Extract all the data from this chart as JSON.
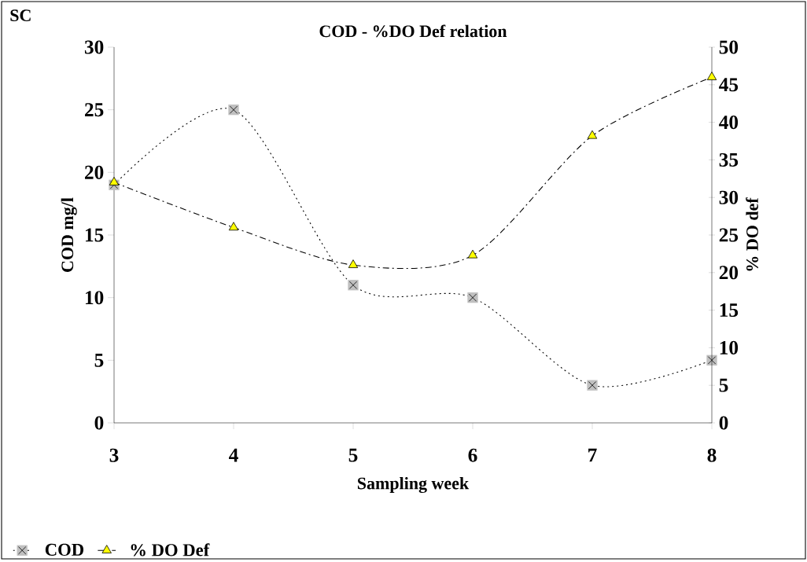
{
  "chart_data": {
    "type": "line",
    "title": "COD - %DO Def relation",
    "xlabel": "Sampling week",
    "ylabel": "COD mg/l",
    "y2label": "% DO def",
    "annotations": [
      "SC"
    ],
    "x": [
      3,
      4,
      5,
      6,
      7,
      8
    ],
    "series": [
      {
        "name": "COD",
        "color": "#c0c0c0",
        "marker": "square",
        "line_style": "dotted",
        "values": [
          19,
          25,
          11,
          10,
          3,
          5
        ]
      },
      {
        "name": "% DO Def",
        "color": "#ffff00",
        "marker": "triangle",
        "line_style": "dashed",
        "axis": "y2",
        "values": [
          32,
          26,
          21,
          22.3,
          38.2,
          46
        ]
      }
    ],
    "xlim": [
      3,
      8
    ],
    "xticks": [
      3,
      4,
      5,
      6,
      7,
      8
    ],
    "ylim": [
      0,
      30
    ],
    "yticks": [
      0,
      5,
      10,
      15,
      20,
      25,
      30
    ],
    "y2lim": [
      0,
      50
    ],
    "y2ticks": [
      0,
      5,
      10,
      15,
      20,
      25,
      30,
      35,
      40,
      45,
      50
    ],
    "legend": "bottom left"
  }
}
